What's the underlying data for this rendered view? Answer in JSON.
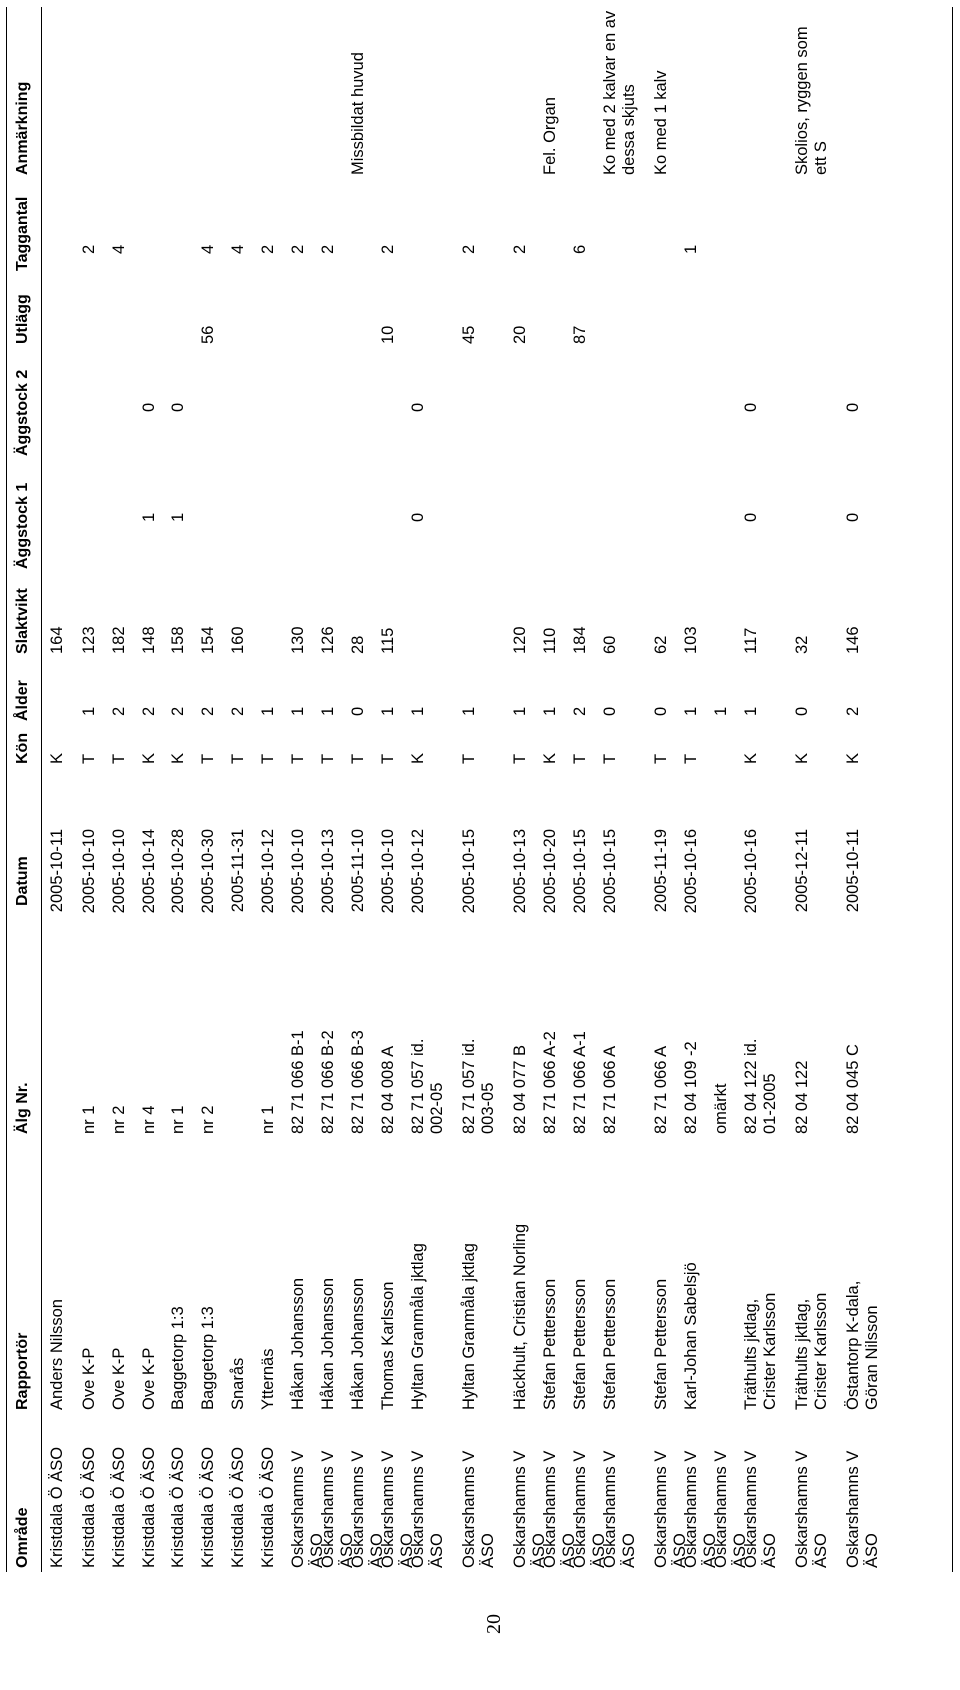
{
  "page_number": "20",
  "headers": {
    "omrade": "Område",
    "rapportor": "Rapportör",
    "alg_nr": "Älg Nr.",
    "datum": "Datum",
    "kon": "Kön",
    "alder": "Ålder",
    "slaktvikt": "Slaktvikt",
    "aggstock1": "Äggstock 1",
    "aggstock2": "Äggstock 2",
    "utlagg": "Utlägg",
    "taggantal": "Taggantal",
    "anmarkning": "Anmärkning"
  },
  "rows": [
    {
      "omrade": "Kristdala Ö ÄSO",
      "rapportor": "Anders Nilsson",
      "alg_nr": "",
      "datum": "2005-10-11",
      "kon": "K",
      "alder": "",
      "slaktvikt": "164",
      "aggstock1": "",
      "aggstock2": "",
      "utlagg": "",
      "taggantal": "",
      "anmarkning": ""
    },
    {
      "omrade": "Kristdala Ö ÄSO",
      "rapportor": "Ove K-P",
      "alg_nr": "nr 1",
      "datum": "2005-10-10",
      "kon": "T",
      "alder": "1",
      "slaktvikt": "123",
      "aggstock1": "",
      "aggstock2": "",
      "utlagg": "",
      "taggantal": "2",
      "anmarkning": ""
    },
    {
      "omrade": "Kristdala Ö ÄSO",
      "rapportor": "Ove K-P",
      "alg_nr": "nr 2",
      "datum": "2005-10-10",
      "kon": "T",
      "alder": "2",
      "slaktvikt": "182",
      "aggstock1": "",
      "aggstock2": "",
      "utlagg": "",
      "taggantal": "4",
      "anmarkning": ""
    },
    {
      "omrade": "Kristdala Ö ÄSO",
      "rapportor": "Ove K-P",
      "alg_nr": "nr 4",
      "datum": "2005-10-14",
      "kon": "K",
      "alder": "2",
      "slaktvikt": "148",
      "aggstock1": "1",
      "aggstock2": "0",
      "utlagg": "",
      "taggantal": "",
      "anmarkning": ""
    },
    {
      "omrade": "Kristdala Ö ÄSO",
      "rapportor": "Baggetorp 1:3",
      "alg_nr": "nr 1",
      "datum": "2005-10-28",
      "kon": "K",
      "alder": "2",
      "slaktvikt": "158",
      "aggstock1": "1",
      "aggstock2": "0",
      "utlagg": "",
      "taggantal": "",
      "anmarkning": ""
    },
    {
      "omrade": "Kristdala Ö ÄSO",
      "rapportor": "Baggetorp 1:3",
      "alg_nr": "nr 2",
      "datum": "2005-10-30",
      "kon": "T",
      "alder": "2",
      "slaktvikt": "154",
      "aggstock1": "",
      "aggstock2": "",
      "utlagg": "56",
      "taggantal": "4",
      "anmarkning": ""
    },
    {
      "omrade": "Kristdala Ö ÄSO",
      "rapportor": "Snarås",
      "alg_nr": "",
      "datum": "2005-11-31",
      "kon": "T",
      "alder": "2",
      "slaktvikt": "160",
      "aggstock1": "",
      "aggstock2": "",
      "utlagg": "",
      "taggantal": "4",
      "anmarkning": ""
    },
    {
      "omrade": "Kristdala Ö ÄSO",
      "rapportor": "Ytternäs",
      "alg_nr": "nr 1",
      "datum": "2005-10-12",
      "kon": "T",
      "alder": "1",
      "slaktvikt": "",
      "aggstock1": "",
      "aggstock2": "",
      "utlagg": "",
      "taggantal": "2",
      "anmarkning": ""
    },
    {
      "omrade": "Oskarshamns V ÄSO",
      "rapportor": "Håkan Johansson",
      "alg_nr": "82 71 066 B-1",
      "datum": "2005-10-10",
      "kon": "T",
      "alder": "1",
      "slaktvikt": "130",
      "aggstock1": "",
      "aggstock2": "",
      "utlagg": "",
      "taggantal": "2",
      "anmarkning": ""
    },
    {
      "omrade": "Oskarshamns V ÄSO",
      "rapportor": "Håkan Johansson",
      "alg_nr": "82 71 066 B-2",
      "datum": "2005-10-13",
      "kon": "T",
      "alder": "1",
      "slaktvikt": "126",
      "aggstock1": "",
      "aggstock2": "",
      "utlagg": "",
      "taggantal": "2",
      "anmarkning": ""
    },
    {
      "omrade": "Oskarshamns V ÄSO",
      "rapportor": "Håkan Johansson",
      "alg_nr": "82 71 066 B-3",
      "datum": "2005-11-10",
      "kon": "T",
      "alder": "0",
      "slaktvikt": "28",
      "aggstock1": "",
      "aggstock2": "",
      "utlagg": "",
      "taggantal": "",
      "anmarkning": "Missbildat huvud"
    },
    {
      "omrade": "Oskarshamns V ÄSO",
      "rapportor": "Thomas Karlsson",
      "alg_nr": "82 04 008 A",
      "datum": "2005-10-10",
      "kon": "T",
      "alder": "1",
      "slaktvikt": "115",
      "aggstock1": "",
      "aggstock2": "",
      "utlagg": "10",
      "taggantal": "2",
      "anmarkning": ""
    },
    {
      "omrade": "Oskarshamns V ÄSO",
      "rapportor": "Hyltan Granmåla jktlag",
      "alg_nr": "82 71 057 id.\n002-05",
      "datum": "2005-10-12",
      "kon": "K",
      "alder": "1",
      "slaktvikt": "",
      "aggstock1": "0",
      "aggstock2": "0",
      "utlagg": "",
      "taggantal": "",
      "anmarkning": ""
    },
    {
      "omrade": "Oskarshamns V ÄSO",
      "rapportor": "Hyltan Granmåla jktlag",
      "alg_nr": "82 71 057 id.\n003-05",
      "datum": "2005-10-15",
      "kon": "T",
      "alder": "1",
      "slaktvikt": "",
      "aggstock1": "",
      "aggstock2": "",
      "utlagg": "45",
      "taggantal": "2",
      "anmarkning": ""
    },
    {
      "omrade": "Oskarshamns V ÄSO",
      "rapportor": "Häckhult, Cristian Norling",
      "alg_nr": "82 04 077 B",
      "datum": "2005-10-13",
      "kon": "T",
      "alder": "1",
      "slaktvikt": "120",
      "aggstock1": "",
      "aggstock2": "",
      "utlagg": "20",
      "taggantal": "2",
      "anmarkning": ""
    },
    {
      "omrade": "Oskarshamns V ÄSO",
      "rapportor": "Stefan Pettersson",
      "alg_nr": "82 71 066 A-2",
      "datum": "2005-10-20",
      "kon": "K",
      "alder": "1",
      "slaktvikt": "110",
      "aggstock1": "",
      "aggstock2": "",
      "utlagg": "",
      "taggantal": "",
      "anmarkning": "Fel. Organ"
    },
    {
      "omrade": "Oskarshamns V ÄSO",
      "rapportor": "Stefan Pettersson",
      "alg_nr": "82 71 066 A-1",
      "datum": "2005-10-15",
      "kon": "T",
      "alder": "2",
      "slaktvikt": "184",
      "aggstock1": "",
      "aggstock2": "",
      "utlagg": "87",
      "taggantal": "6",
      "anmarkning": ""
    },
    {
      "omrade": "Oskarshamns V ÄSO",
      "rapportor": "Stefan Pettersson",
      "alg_nr": "82 71 066 A",
      "datum": "2005-10-15",
      "kon": "T",
      "alder": "0",
      "slaktvikt": "60",
      "aggstock1": "",
      "aggstock2": "",
      "utlagg": "",
      "taggantal": "",
      "anmarkning": "Ko med 2 kalvar en av\ndessa skjuts"
    },
    {
      "omrade": "Oskarshamns V ÄSO",
      "rapportor": "Stefan Pettersson",
      "alg_nr": "82 71 066 A",
      "datum": "2005-11-19",
      "kon": "T",
      "alder": "0",
      "slaktvikt": "62",
      "aggstock1": "",
      "aggstock2": "",
      "utlagg": "",
      "taggantal": "",
      "anmarkning": "Ko med 1 kalv"
    },
    {
      "omrade": "Oskarshamns V ÄSO",
      "rapportor": "Karl-Johan Sabelsjö",
      "alg_nr": "82 04 109 -2",
      "datum": "2005-10-16",
      "kon": "T",
      "alder": "1",
      "slaktvikt": "103",
      "aggstock1": "",
      "aggstock2": "",
      "utlagg": "",
      "taggantal": "1",
      "anmarkning": ""
    },
    {
      "omrade": "Oskarshamns V ÄSO",
      "rapportor": "",
      "alg_nr": "omärkt",
      "datum": "",
      "kon": "",
      "alder": "1",
      "slaktvikt": "",
      "aggstock1": "",
      "aggstock2": "",
      "utlagg": "",
      "taggantal": "",
      "anmarkning": ""
    },
    {
      "omrade": "Oskarshamns V ÄSO",
      "rapportor": "Träthults jktlag,\nCrister Karlsson",
      "alg_nr": "82 04 122 id.\n01-2005",
      "datum": "2005-10-16",
      "kon": "K",
      "alder": "1",
      "slaktvikt": "117",
      "aggstock1": "0",
      "aggstock2": "0",
      "utlagg": "",
      "taggantal": "",
      "anmarkning": ""
    },
    {
      "omrade": "Oskarshamns V ÄSO",
      "rapportor": "Träthults jktlag,\nCrister Karlsson",
      "alg_nr": "82 04 122",
      "datum": "2005-12-11",
      "kon": "K",
      "alder": "0",
      "slaktvikt": "32",
      "aggstock1": "",
      "aggstock2": "",
      "utlagg": "",
      "taggantal": "",
      "anmarkning": "Skolios, ryggen som ett S"
    },
    {
      "omrade": "Oskarshamns V ÄSO",
      "rapportor": "Östantorp K-dala,\nGöran Nilsson",
      "alg_nr": "82 04 045 C",
      "datum": "2005-10-11",
      "kon": "K",
      "alder": "2",
      "slaktvikt": "146",
      "aggstock1": "0",
      "aggstock2": "0",
      "utlagg": "",
      "taggantal": "",
      "anmarkning": ""
    }
  ]
}
